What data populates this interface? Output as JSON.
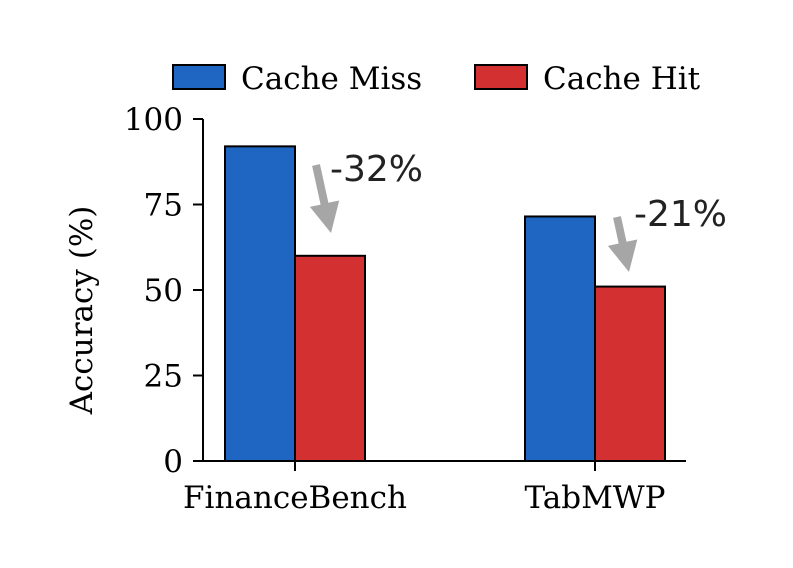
{
  "chart_data": {
    "type": "bar",
    "categories": [
      "FinanceBench",
      "TabMWP"
    ],
    "series": [
      {
        "name": "Cache Miss",
        "values": [
          92,
          71.5
        ]
      },
      {
        "name": "Cache Hit",
        "values": [
          60,
          51
        ]
      }
    ],
    "ylabel": "Accuracy (%)",
    "xlabel": "",
    "ylim": [
      0,
      100
    ],
    "yticks": [
      0,
      25,
      50,
      75,
      100
    ],
    "ytick_labels": [
      "0",
      "25",
      "50",
      "75",
      "100"
    ],
    "grid": false,
    "legend_position": "top",
    "annotations": [
      {
        "category": "FinanceBench",
        "text": "-32%"
      },
      {
        "category": "TabMWP",
        "text": "-21%"
      }
    ],
    "colors": {
      "cache_miss": "#1f66c3",
      "cache_hit": "#d33131",
      "arrow": "#a6a6a6",
      "axis": "#000000"
    }
  }
}
